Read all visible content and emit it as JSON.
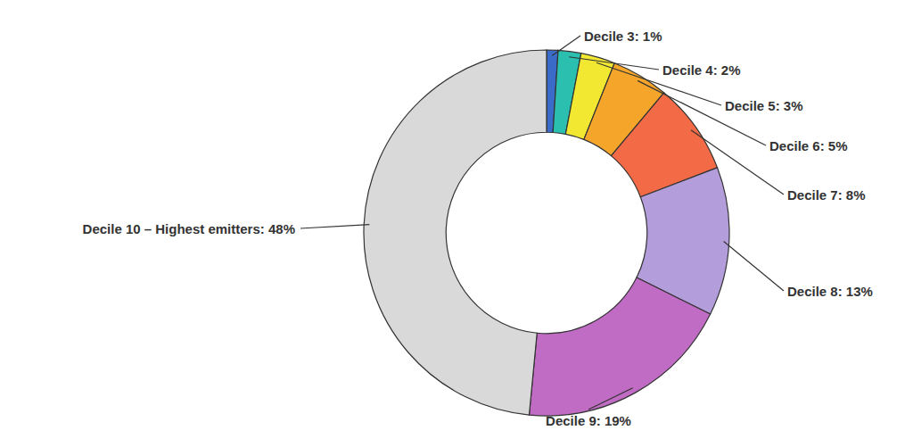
{
  "chart_data": {
    "type": "donut",
    "categories": [
      "Decile 3: 1%",
      "Decile 4: 2%",
      "Decile 5: 3%",
      "Decile 6: 5%",
      "Decile 7: 8%",
      "Decile 8: 13%",
      "Decile 9: 19%",
      "Decile 10 – Highest emitters: 48%"
    ],
    "values": [
      1,
      2,
      3,
      5,
      8,
      13,
      19,
      48
    ],
    "colors": [
      "#3A6BC8",
      "#2BBFB0",
      "#F2E832",
      "#F5A62A",
      "#F26B46",
      "#B39DDB",
      "#C06BC4",
      "#D9D9D9"
    ]
  }
}
